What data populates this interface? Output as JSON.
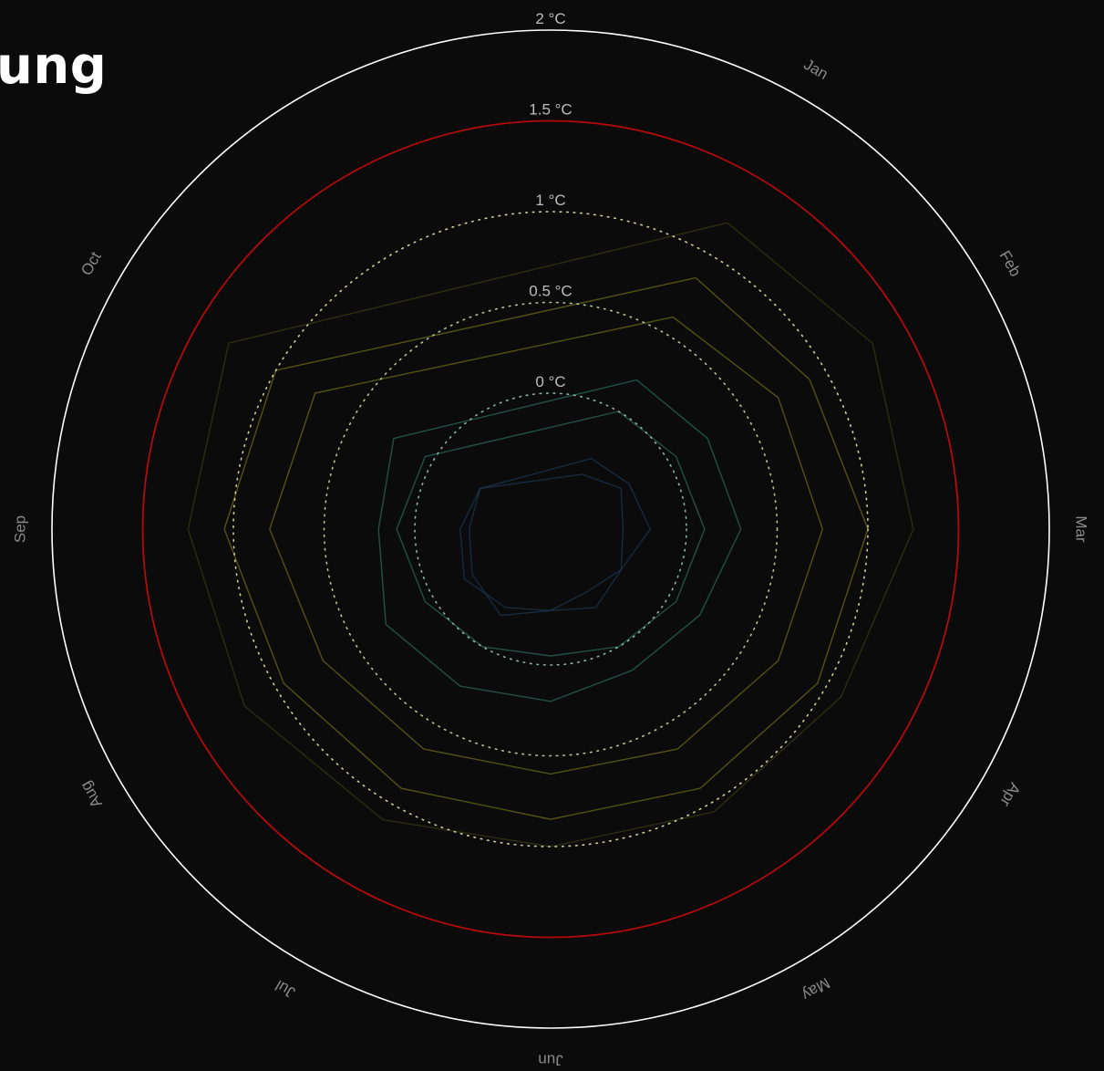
{
  "header": {
    "title": "ung"
  },
  "chart_data": {
    "type": "line",
    "subtype": "polar-spiral",
    "title": "ung",
    "radial_unit": "°C",
    "angular_axis": {
      "categories": [
        "Jan",
        "Feb",
        "Mar",
        "Apr",
        "May",
        "Jun",
        "Jul",
        "Aug",
        "Sep",
        "Oct"
      ],
      "direction": "clockwise"
    },
    "rings": [
      {
        "value": 0,
        "label": "0 °C",
        "style": "dotted",
        "color": "#8fb3a8"
      },
      {
        "value": 0.5,
        "label": "0.5 °C",
        "style": "dotted",
        "color": "#b8c49a"
      },
      {
        "value": 1,
        "label": "1 °C",
        "style": "dotted",
        "color": "#d2cf9c"
      },
      {
        "value": 1.5,
        "label": "1.5 °C",
        "style": "solid",
        "color": "#b30b0b"
      },
      {
        "value": 2,
        "label": "2 °C",
        "style": "solid",
        "color": "#ffffff"
      }
    ],
    "radial_range": [
      -1,
      2
    ],
    "series_description_colors": {
      "early": "#1c3650",
      "mid": "#2a6a5a",
      "late": "#6e6a1a",
      "latest": "#3a3a16"
    },
    "series": [
      {
        "period": "early",
        "monthly_anomalies": [
          -0.4,
          -0.3,
          -0.35,
          -0.3,
          -0.25,
          -0.3,
          -0.2,
          -0.25,
          -0.3,
          -0.3
        ]
      },
      {
        "period": "early",
        "monthly_anomalies": [
          -0.3,
          -0.25,
          -0.2,
          -0.3,
          -0.35,
          -0.3,
          -0.25,
          -0.2,
          -0.25,
          -0.3
        ]
      },
      {
        "period": "mid",
        "monthly_anomalies": [
          0.0,
          0.05,
          0.1,
          0.05,
          0.0,
          -0.05,
          0.0,
          0.05,
          0.1,
          0.05
        ]
      },
      {
        "period": "mid",
        "monthly_anomalies": [
          0.2,
          0.25,
          0.3,
          0.2,
          0.15,
          0.2,
          0.25,
          0.3,
          0.2,
          0.25
        ]
      },
      {
        "period": "late",
        "monthly_anomalies": [
          0.6,
          0.7,
          0.75,
          0.7,
          0.65,
          0.6,
          0.65,
          0.7,
          0.8,
          0.75
        ]
      },
      {
        "period": "late",
        "monthly_anomalies": [
          0.85,
          0.9,
          1.0,
          0.95,
          0.9,
          0.85,
          0.9,
          0.95,
          1.05,
          1.0
        ]
      },
      {
        "period": "latest",
        "monthly_anomalies": [
          1.2,
          1.3,
          1.25,
          1.1,
          1.05,
          1.0,
          1.1,
          1.2,
          1.25,
          1.3
        ]
      }
    ],
    "legend": "none",
    "grid": false
  }
}
